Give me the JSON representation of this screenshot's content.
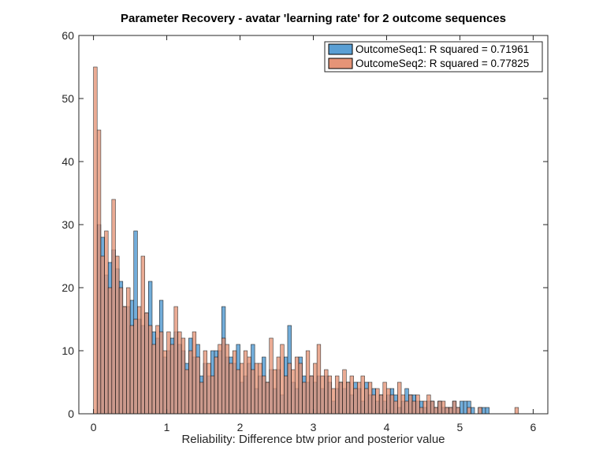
{
  "chart_data": {
    "type": "bar",
    "title": "Parameter Recovery - avatar 'learning rate' for 2 outcome sequences",
    "xlabel": "Reliability: Difference btw prior and posterior value",
    "ylabel": "",
    "xlim": [
      -0.2,
      6.2
    ],
    "ylim": [
      0,
      60
    ],
    "xticks": [
      0,
      1,
      2,
      3,
      4,
      5,
      6
    ],
    "yticks": [
      0,
      10,
      20,
      30,
      40,
      50,
      60
    ],
    "bin_width": 0.05,
    "grid": false,
    "legend_position": "top-right",
    "series": [
      {
        "name": "OutcomeSeq1: R squared = 0.71961",
        "color": "#0072BD",
        "face_color": "#5A9FD4",
        "bins": [
          {
            "x": 0.05,
            "y": 30
          },
          {
            "x": 0.1,
            "y": 28
          },
          {
            "x": 0.15,
            "y": 22
          },
          {
            "x": 0.2,
            "y": 24
          },
          {
            "x": 0.25,
            "y": 26
          },
          {
            "x": 0.3,
            "y": 23
          },
          {
            "x": 0.35,
            "y": 21
          },
          {
            "x": 0.4,
            "y": 17
          },
          {
            "x": 0.45,
            "y": 17
          },
          {
            "x": 0.5,
            "y": 18
          },
          {
            "x": 0.55,
            "y": 29
          },
          {
            "x": 0.6,
            "y": 15
          },
          {
            "x": 0.65,
            "y": 14
          },
          {
            "x": 0.7,
            "y": 16
          },
          {
            "x": 0.75,
            "y": 21
          },
          {
            "x": 0.8,
            "y": 13
          },
          {
            "x": 0.85,
            "y": 12
          },
          {
            "x": 0.9,
            "y": 18
          },
          {
            "x": 0.95,
            "y": 9
          },
          {
            "x": 1.0,
            "y": 10
          },
          {
            "x": 1.05,
            "y": 12
          },
          {
            "x": 1.1,
            "y": 13
          },
          {
            "x": 1.15,
            "y": 11
          },
          {
            "x": 1.2,
            "y": 10
          },
          {
            "x": 1.25,
            "y": 8
          },
          {
            "x": 1.3,
            "y": 12
          },
          {
            "x": 1.35,
            "y": 9
          },
          {
            "x": 1.4,
            "y": 11
          },
          {
            "x": 1.45,
            "y": 6
          },
          {
            "x": 1.5,
            "y": 8
          },
          {
            "x": 1.55,
            "y": 6
          },
          {
            "x": 1.6,
            "y": 10
          },
          {
            "x": 1.65,
            "y": 10
          },
          {
            "x": 1.7,
            "y": 10
          },
          {
            "x": 1.75,
            "y": 17
          },
          {
            "x": 1.8,
            "y": 9
          },
          {
            "x": 1.85,
            "y": 9
          },
          {
            "x": 1.9,
            "y": 8
          },
          {
            "x": 1.95,
            "y": 11
          },
          {
            "x": 2.0,
            "y": 5
          },
          {
            "x": 2.05,
            "y": 6
          },
          {
            "x": 2.1,
            "y": 8
          },
          {
            "x": 2.15,
            "y": 11
          },
          {
            "x": 2.2,
            "y": 4
          },
          {
            "x": 2.25,
            "y": 6
          },
          {
            "x": 2.3,
            "y": 9
          },
          {
            "x": 2.35,
            "y": 5
          },
          {
            "x": 2.4,
            "y": 7
          },
          {
            "x": 2.45,
            "y": 4
          },
          {
            "x": 2.5,
            "y": 7
          },
          {
            "x": 2.55,
            "y": 3
          },
          {
            "x": 2.6,
            "y": 9
          },
          {
            "x": 2.65,
            "y": 14
          },
          {
            "x": 2.7,
            "y": 5
          },
          {
            "x": 2.75,
            "y": 4
          },
          {
            "x": 2.8,
            "y": 9
          },
          {
            "x": 2.85,
            "y": 6
          },
          {
            "x": 2.9,
            "y": 5
          },
          {
            "x": 2.95,
            "y": 6
          },
          {
            "x": 3.0,
            "y": 5
          },
          {
            "x": 3.05,
            "y": 6
          },
          {
            "x": 3.1,
            "y": 4
          },
          {
            "x": 3.15,
            "y": 6
          },
          {
            "x": 3.2,
            "y": 5
          },
          {
            "x": 3.25,
            "y": 2
          },
          {
            "x": 3.3,
            "y": 4
          },
          {
            "x": 3.35,
            "y": 5
          },
          {
            "x": 3.4,
            "y": 4
          },
          {
            "x": 3.45,
            "y": 5
          },
          {
            "x": 3.5,
            "y": 3
          },
          {
            "x": 3.55,
            "y": 5
          },
          {
            "x": 3.6,
            "y": 4
          },
          {
            "x": 3.65,
            "y": 2
          },
          {
            "x": 3.7,
            "y": 5
          },
          {
            "x": 3.75,
            "y": 3
          },
          {
            "x": 3.8,
            "y": 4
          },
          {
            "x": 3.85,
            "y": 2
          },
          {
            "x": 3.9,
            "y": 3
          },
          {
            "x": 3.95,
            "y": 2
          },
          {
            "x": 4.0,
            "y": 3
          },
          {
            "x": 4.05,
            "y": 4
          },
          {
            "x": 4.1,
            "y": 3
          },
          {
            "x": 4.15,
            "y": 1
          },
          {
            "x": 4.2,
            "y": 2
          },
          {
            "x": 4.25,
            "y": 4
          },
          {
            "x": 4.3,
            "y": 3
          },
          {
            "x": 4.35,
            "y": 3
          },
          {
            "x": 4.4,
            "y": 2
          },
          {
            "x": 4.45,
            "y": 2
          },
          {
            "x": 4.5,
            "y": 1
          },
          {
            "x": 4.55,
            "y": 2
          },
          {
            "x": 4.6,
            "y": 2
          },
          {
            "x": 4.65,
            "y": 1
          },
          {
            "x": 4.7,
            "y": 2
          },
          {
            "x": 4.75,
            "y": 1
          },
          {
            "x": 4.8,
            "y": 1
          },
          {
            "x": 4.85,
            "y": 1
          },
          {
            "x": 4.9,
            "y": 2
          },
          {
            "x": 4.95,
            "y": 1
          },
          {
            "x": 5.0,
            "y": 2
          },
          {
            "x": 5.05,
            "y": 2
          },
          {
            "x": 5.1,
            "y": 2
          },
          {
            "x": 5.15,
            "y": 1
          },
          {
            "x": 5.25,
            "y": 1
          },
          {
            "x": 5.3,
            "y": 1
          },
          {
            "x": 5.35,
            "y": 1
          }
        ]
      },
      {
        "name": "OutcomeSeq2: R squared = 0.77825",
        "color": "#D95319",
        "face_color": "#E59477",
        "bins": [
          {
            "x": 0.0,
            "y": 55
          },
          {
            "x": 0.05,
            "y": 45
          },
          {
            "x": 0.1,
            "y": 25
          },
          {
            "x": 0.15,
            "y": 29
          },
          {
            "x": 0.2,
            "y": 20
          },
          {
            "x": 0.25,
            "y": 34
          },
          {
            "x": 0.3,
            "y": 25
          },
          {
            "x": 0.35,
            "y": 20
          },
          {
            "x": 0.4,
            "y": 17
          },
          {
            "x": 0.45,
            "y": 20
          },
          {
            "x": 0.5,
            "y": 14
          },
          {
            "x": 0.55,
            "y": 15
          },
          {
            "x": 0.6,
            "y": 17
          },
          {
            "x": 0.65,
            "y": 25
          },
          {
            "x": 0.7,
            "y": 16
          },
          {
            "x": 0.75,
            "y": 14
          },
          {
            "x": 0.8,
            "y": 11
          },
          {
            "x": 0.85,
            "y": 14
          },
          {
            "x": 0.9,
            "y": 13
          },
          {
            "x": 0.95,
            "y": 10
          },
          {
            "x": 1.0,
            "y": 13
          },
          {
            "x": 1.05,
            "y": 11
          },
          {
            "x": 1.1,
            "y": 17
          },
          {
            "x": 1.15,
            "y": 13
          },
          {
            "x": 1.2,
            "y": 12
          },
          {
            "x": 1.25,
            "y": 7
          },
          {
            "x": 1.3,
            "y": 10
          },
          {
            "x": 1.35,
            "y": 13
          },
          {
            "x": 1.4,
            "y": 9
          },
          {
            "x": 1.45,
            "y": 5
          },
          {
            "x": 1.5,
            "y": 10
          },
          {
            "x": 1.55,
            "y": 8
          },
          {
            "x": 1.6,
            "y": 6
          },
          {
            "x": 1.65,
            "y": 9
          },
          {
            "x": 1.7,
            "y": 11
          },
          {
            "x": 1.75,
            "y": 12
          },
          {
            "x": 1.8,
            "y": 11
          },
          {
            "x": 1.85,
            "y": 8
          },
          {
            "x": 1.9,
            "y": 10
          },
          {
            "x": 1.95,
            "y": 7
          },
          {
            "x": 2.0,
            "y": 8
          },
          {
            "x": 2.05,
            "y": 10
          },
          {
            "x": 2.1,
            "y": 9
          },
          {
            "x": 2.15,
            "y": 7
          },
          {
            "x": 2.2,
            "y": 8
          },
          {
            "x": 2.25,
            "y": 8
          },
          {
            "x": 2.3,
            "y": 6
          },
          {
            "x": 2.35,
            "y": 5
          },
          {
            "x": 2.4,
            "y": 12
          },
          {
            "x": 2.45,
            "y": 7
          },
          {
            "x": 2.5,
            "y": 9
          },
          {
            "x": 2.55,
            "y": 11
          },
          {
            "x": 2.6,
            "y": 6
          },
          {
            "x": 2.65,
            "y": 8
          },
          {
            "x": 2.7,
            "y": 7
          },
          {
            "x": 2.75,
            "y": 9
          },
          {
            "x": 2.8,
            "y": 8
          },
          {
            "x": 2.85,
            "y": 5
          },
          {
            "x": 2.9,
            "y": 10
          },
          {
            "x": 2.95,
            "y": 6
          },
          {
            "x": 3.0,
            "y": 8
          },
          {
            "x": 3.05,
            "y": 11
          },
          {
            "x": 3.1,
            "y": 6
          },
          {
            "x": 3.15,
            "y": 7
          },
          {
            "x": 3.2,
            "y": 6
          },
          {
            "x": 3.25,
            "y": 4
          },
          {
            "x": 3.3,
            "y": 6
          },
          {
            "x": 3.35,
            "y": 5
          },
          {
            "x": 3.4,
            "y": 7
          },
          {
            "x": 3.45,
            "y": 5
          },
          {
            "x": 3.5,
            "y": 6
          },
          {
            "x": 3.55,
            "y": 4
          },
          {
            "x": 3.6,
            "y": 5
          },
          {
            "x": 3.65,
            "y": 6
          },
          {
            "x": 3.7,
            "y": 4
          },
          {
            "x": 3.75,
            "y": 5
          },
          {
            "x": 3.8,
            "y": 3
          },
          {
            "x": 3.85,
            "y": 4
          },
          {
            "x": 3.9,
            "y": 3
          },
          {
            "x": 3.95,
            "y": 5
          },
          {
            "x": 4.0,
            "y": 4
          },
          {
            "x": 4.05,
            "y": 3
          },
          {
            "x": 4.1,
            "y": 2
          },
          {
            "x": 4.15,
            "y": 5
          },
          {
            "x": 4.2,
            "y": 3
          },
          {
            "x": 4.25,
            "y": 2
          },
          {
            "x": 4.3,
            "y": 3
          },
          {
            "x": 4.35,
            "y": 2
          },
          {
            "x": 4.4,
            "y": 3
          },
          {
            "x": 4.45,
            "y": 1
          },
          {
            "x": 4.5,
            "y": 2
          },
          {
            "x": 4.55,
            "y": 3
          },
          {
            "x": 4.6,
            "y": 2
          },
          {
            "x": 4.65,
            "y": 1
          },
          {
            "x": 4.7,
            "y": 2
          },
          {
            "x": 4.75,
            "y": 2
          },
          {
            "x": 4.8,
            "y": 1
          },
          {
            "x": 4.85,
            "y": 1
          },
          {
            "x": 4.9,
            "y": 2
          },
          {
            "x": 4.95,
            "y": 1
          },
          {
            "x": 5.1,
            "y": 1
          },
          {
            "x": 5.25,
            "y": 1
          },
          {
            "x": 5.75,
            "y": 1
          }
        ]
      }
    ]
  }
}
